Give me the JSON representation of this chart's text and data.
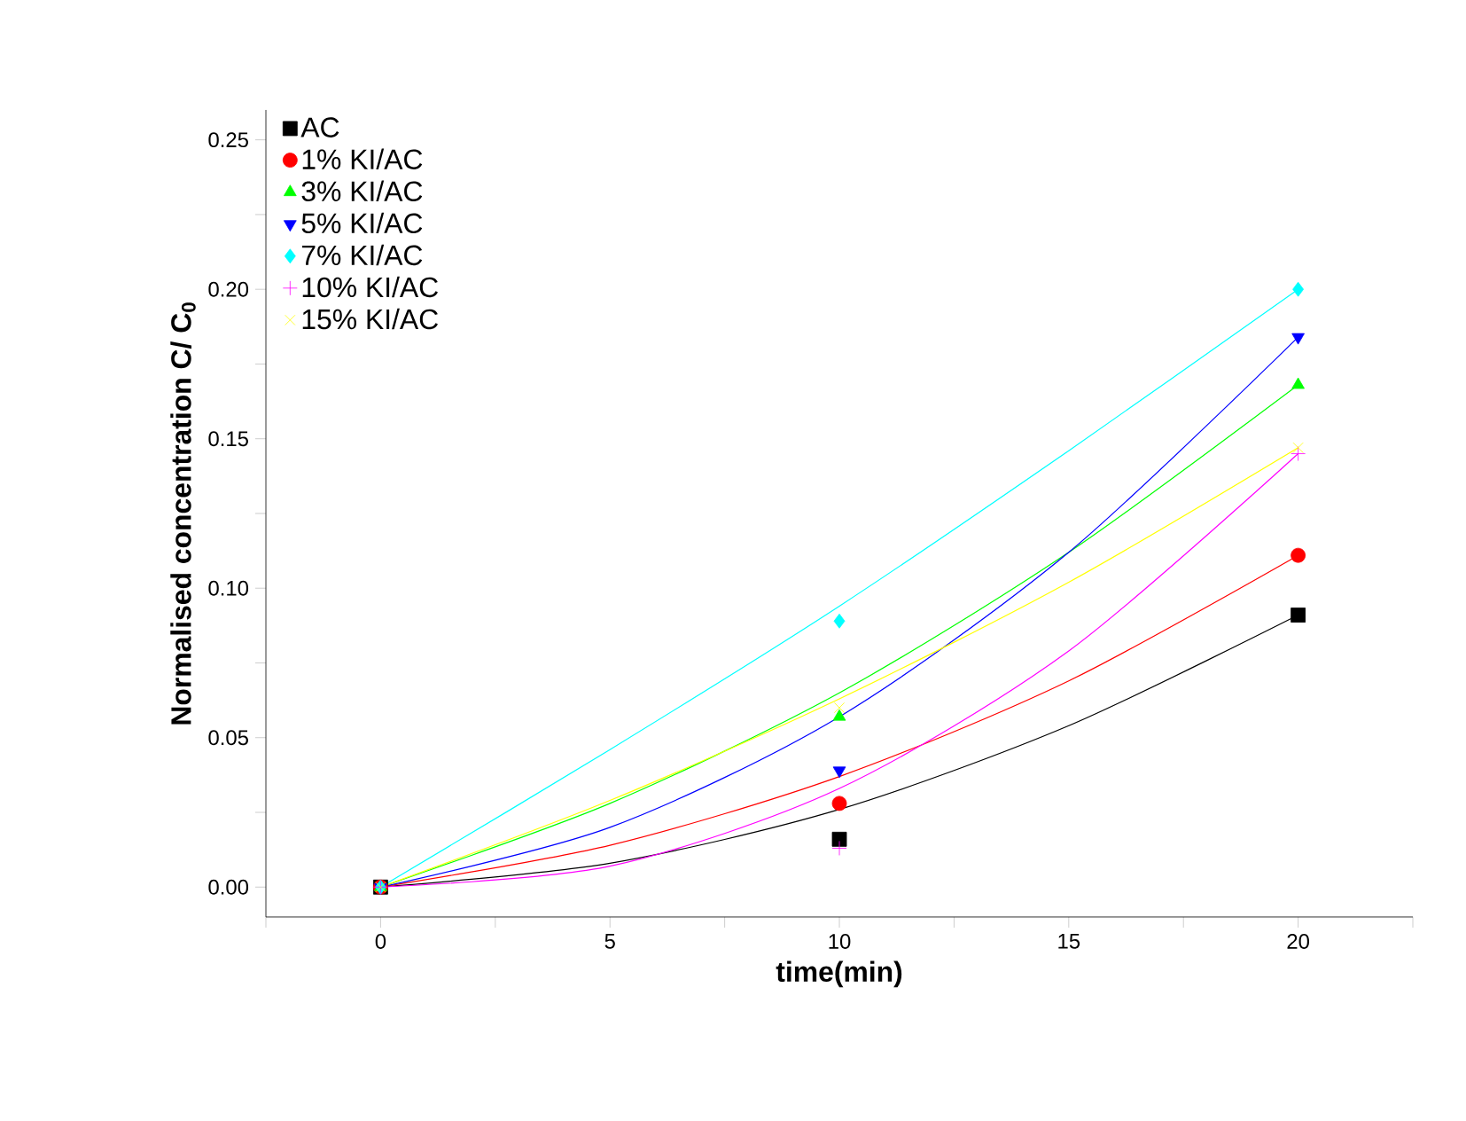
{
  "chart_data": {
    "type": "scatter",
    "xlabel": "time(min)",
    "ylabel": "Normalised concentration  C/ C$_{0}$",
    "xlim": [
      -2.5,
      22.5
    ],
    "ylim": [
      -0.01,
      0.26
    ],
    "xticks": [
      {
        "value": -2.5,
        "label": null
      },
      0,
      {
        "value": 2.5,
        "label": null
      },
      5,
      {
        "value": 7.5,
        "label": null
      },
      10,
      {
        "value": 12.5,
        "label": null
      },
      15,
      {
        "value": 17.5,
        "label": null
      },
      20,
      {
        "value": 22.5,
        "label": null
      }
    ],
    "yticks": [
      {
        "value": 0,
        "label": "0.00"
      },
      {
        "value": 0.025,
        "label": null
      },
      {
        "value": 0.05,
        "label": "0.05"
      },
      {
        "value": 0.075,
        "label": null
      },
      {
        "value": 0.1,
        "label": "0.10"
      },
      {
        "value": 0.125,
        "label": null
      },
      {
        "value": 0.15,
        "label": "0.15"
      },
      {
        "value": 0.175,
        "label": null
      },
      {
        "value": 0.2,
        "label": "0.20"
      },
      {
        "value": 0.225,
        "label": null
      },
      {
        "value": 0.25,
        "label": "0.25"
      }
    ],
    "x": [
      0,
      10,
      20
    ],
    "legend": "top left",
    "grid": false,
    "series": [
      {
        "name": "AC",
        "color": "#000000",
        "marker": "square",
        "values": [
          0,
          0.016,
          0.091
        ]
      },
      {
        "name": "1% KI/AC",
        "color": "#ff0000",
        "marker": "circle",
        "values": [
          0,
          0.028,
          0.111
        ]
      },
      {
        "name": "3% KI/AC",
        "color": "#00ff00",
        "marker": "triangle",
        "values": [
          0,
          0.057,
          0.168
        ]
      },
      {
        "name": "5% KI/AC",
        "color": "#0000ff",
        "marker": "triangle-down",
        "values": [
          0,
          0.039,
          0.184
        ]
      },
      {
        "name": "7% KI/AC",
        "color": "#00ffff",
        "marker": "diamond",
        "values": [
          0,
          0.089,
          0.2
        ]
      },
      {
        "name": "10% KI/AC",
        "color": "#ff00ff",
        "marker": "plus",
        "values": [
          0,
          0.013,
          0.145
        ]
      },
      {
        "name": "15% KI/AC",
        "color": "#ffff00",
        "marker": "cross",
        "values": [
          0,
          0.06,
          0.147
        ]
      },
      {
        "type": "line",
        "color": "#000000",
        "x": [
          0,
          5,
          10,
          15,
          20
        ],
        "values": [
          0,
          0.008,
          0.026,
          0.054,
          0.091
        ]
      },
      {
        "type": "line",
        "color": "#ff0000",
        "x": [
          0,
          5,
          10,
          15,
          20
        ],
        "values": [
          0,
          0.014,
          0.037,
          0.069,
          0.111
        ]
      },
      {
        "type": "line",
        "color": "#00ff00",
        "x": [
          0,
          5,
          10,
          15,
          20
        ],
        "values": [
          0,
          0.028,
          0.065,
          0.112,
          0.168
        ]
      },
      {
        "type": "line",
        "color": "#0000ff",
        "x": [
          0,
          5,
          10,
          15,
          20
        ],
        "values": [
          0,
          0.02,
          0.057,
          0.112,
          0.184
        ]
      },
      {
        "type": "line",
        "color": "#00ffff",
        "x": [
          0,
          5,
          10,
          15,
          20
        ],
        "values": [
          0,
          0.046,
          0.094,
          0.146,
          0.2
        ]
      },
      {
        "type": "line",
        "color": "#ff00ff",
        "x": [
          0,
          5,
          10,
          15,
          20
        ],
        "values": [
          0,
          0.007,
          0.033,
          0.079,
          0.145
        ]
      },
      {
        "type": "line",
        "color": "#ffff00",
        "x": [
          0,
          5,
          10,
          15,
          20
        ],
        "values": [
          0,
          0.029,
          0.063,
          0.102,
          0.147
        ]
      }
    ]
  }
}
